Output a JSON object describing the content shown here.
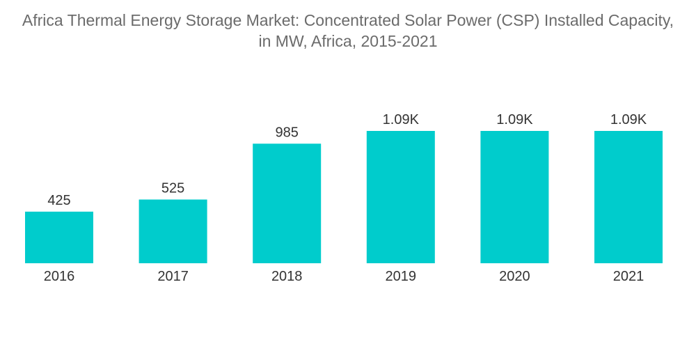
{
  "chart_data": {
    "type": "bar",
    "title_lines": [
      "Africa Thermal Energy Storage Market: Concentrated Solar Power (CSP) Installed Capacity,",
      "in MW, Africa, 2015-2021"
    ],
    "categories": [
      "2016",
      "2017",
      "2018",
      "2019",
      "2020",
      "2021"
    ],
    "values": [
      425,
      525,
      985,
      1090,
      1090,
      1090
    ],
    "value_labels": [
      "425",
      "525",
      "985",
      "1.09K",
      "1.09K",
      "1.09K"
    ],
    "xlabel": "",
    "ylabel": "",
    "ylim": [
      0,
      1090
    ],
    "grid": false,
    "legend": "none",
    "bar_color": "#00CCCC"
  }
}
